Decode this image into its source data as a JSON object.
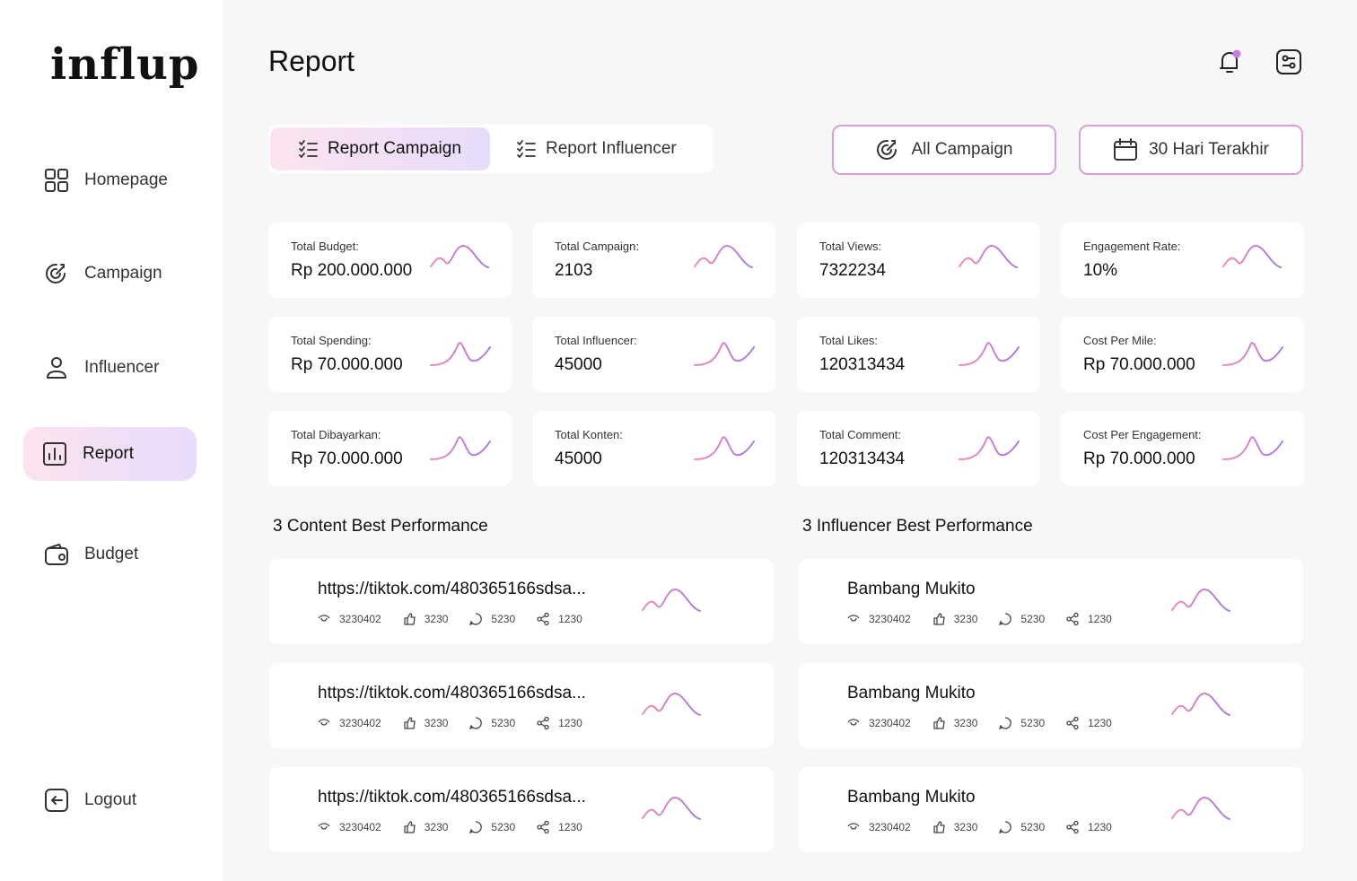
{
  "sidebar": {
    "logo": "influp",
    "nav": [
      "Homepage",
      "Campaign",
      "Influencer",
      "Report",
      "Budget"
    ],
    "active": "Report",
    "logout": "Logout"
  },
  "header": {
    "title": "Report"
  },
  "tabs": [
    "Report Campaign",
    "Report Influencer"
  ],
  "filters": [
    "All Campaign",
    "30 Hari Terakhir"
  ],
  "stats": [
    {
      "label": "Total Budget:",
      "value": "Rp 200.000.000"
    },
    {
      "label": "Total Campaign:",
      "value": "2103"
    },
    {
      "label": "Total Views:",
      "value": "7322234"
    },
    {
      "label": "Engagement Rate:",
      "value": "10%"
    },
    {
      "label": "Total Spending:",
      "value": "Rp 70.000.000"
    },
    {
      "label": "Total Influencer:",
      "value": "45000"
    },
    {
      "label": "Total Likes:",
      "value": "120313434"
    },
    {
      "label": "Cost Per Mile:",
      "value": "Rp 70.000.000"
    },
    {
      "label": "Total Dibayarkan:",
      "value": "Rp 70.000.000"
    },
    {
      "label": "Total Konten:",
      "value": "45000"
    },
    {
      "label": "Total Comment:",
      "value": "120313434"
    },
    {
      "label": "Cost Per Engagement:",
      "value": "Rp 70.000.000"
    }
  ],
  "sections": [
    {
      "title": "3 Content Best Performance",
      "items": [
        {
          "name": "https://tiktok.com/480365166sdsa...",
          "views": "3230402",
          "likes": "3230",
          "comments": "5230",
          "shares": "1230"
        },
        {
          "name": "https://tiktok.com/480365166sdsa...",
          "views": "3230402",
          "likes": "3230",
          "comments": "5230",
          "shares": "1230"
        },
        {
          "name": "https://tiktok.com/480365166sdsa...",
          "views": "3230402",
          "likes": "3230",
          "comments": "5230",
          "shares": "1230"
        }
      ]
    },
    {
      "title": "3 Influencer Best Performance",
      "items": [
        {
          "name": "Bambang Mukito",
          "views": "3230402",
          "likes": "3230",
          "comments": "5230",
          "shares": "1230"
        },
        {
          "name": "Bambang Mukito",
          "views": "3230402",
          "likes": "3230",
          "comments": "5230",
          "shares": "1230"
        },
        {
          "name": "Bambang Mukito",
          "views": "3230402",
          "likes": "3230",
          "comments": "5230",
          "shares": "1230"
        }
      ]
    }
  ]
}
